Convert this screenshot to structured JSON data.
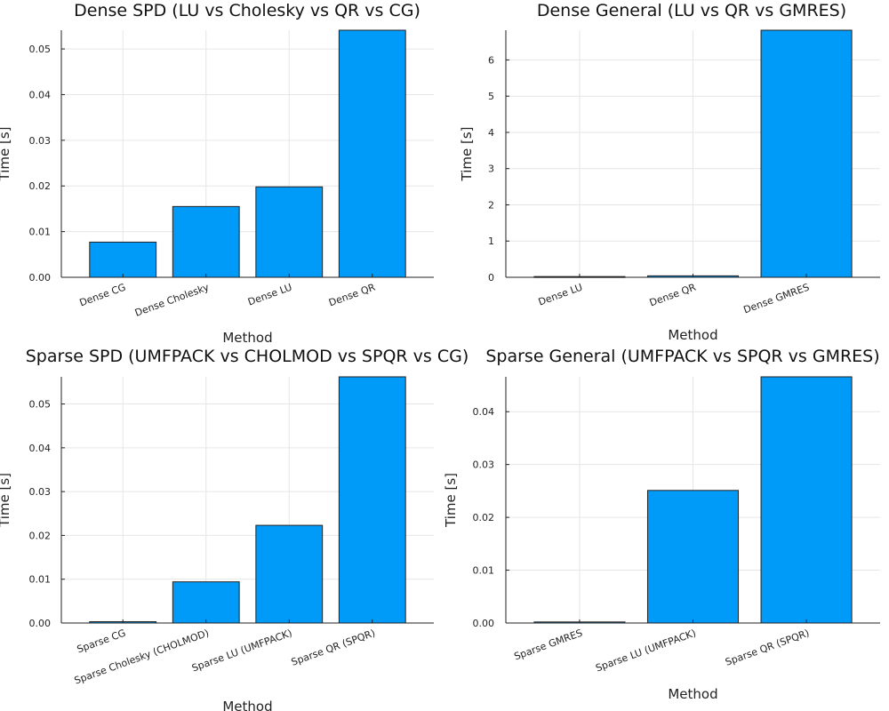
{
  "colors": {
    "bar": "#009AF9",
    "axis": "#222222",
    "grid": "#E6E6E6"
  },
  "chart_data": [
    {
      "type": "bar",
      "title": "Dense SPD (LU vs Cholesky vs QR vs CG)",
      "xlabel": "Method",
      "ylabel": "Time [s]",
      "categories": [
        "Dense CG",
        "Dense Cholesky",
        "Dense LU",
        "Dense QR"
      ],
      "values": [
        0.0077,
        0.0155,
        0.0198,
        0.0541
      ],
      "ylim": [
        0,
        0.0541
      ],
      "yticks": [
        0,
        0.01,
        0.02,
        0.03,
        0.04,
        0.05
      ],
      "ytick_labels": [
        "0.00",
        "0.01",
        "0.02",
        "0.03",
        "0.04",
        "0.05"
      ],
      "grid": true,
      "legend": false
    },
    {
      "type": "bar",
      "title": "Dense General (LU vs QR vs GMRES)",
      "xlabel": "Method",
      "ylabel": "Time [s]",
      "categories": [
        "Dense LU",
        "Dense QR",
        "Dense GMRES"
      ],
      "values": [
        0.02,
        0.04,
        6.82
      ],
      "ylim": [
        0,
        6.82
      ],
      "yticks": [
        0,
        1,
        2,
        3,
        4,
        5,
        6
      ],
      "ytick_labels": [
        "0",
        "1",
        "2",
        "3",
        "4",
        "5",
        "6"
      ],
      "grid": true,
      "legend": false
    },
    {
      "type": "bar",
      "title": "Sparse SPD (UMFPACK vs CHOLMOD vs SPQR vs CG)",
      "xlabel": "Method",
      "ylabel": "Time [s]",
      "categories": [
        "Sparse CG",
        "Sparse Cholesky (CHOLMOD)",
        "Sparse LU (UMFPACK)",
        "Sparse QR (SPQR)"
      ],
      "values": [
        0.0003,
        0.0094,
        0.0223,
        0.0562
      ],
      "ylim": [
        0,
        0.0562
      ],
      "yticks": [
        0,
        0.01,
        0.02,
        0.03,
        0.04,
        0.05
      ],
      "ytick_labels": [
        "0.00",
        "0.01",
        "0.02",
        "0.03",
        "0.04",
        "0.05"
      ],
      "grid": true,
      "legend": false
    },
    {
      "type": "bar",
      "title": "Sparse General (UMFPACK vs SPQR vs GMRES)",
      "xlabel": "Method",
      "ylabel": "Time [s]",
      "categories": [
        "Sparse GMRES",
        "Sparse LU (UMFPACK)",
        "Sparse QR (SPQR)"
      ],
      "values": [
        0.0002,
        0.0251,
        0.0466
      ],
      "ylim": [
        0,
        0.0466
      ],
      "yticks": [
        0,
        0.01,
        0.02,
        0.03,
        0.04
      ],
      "ytick_labels": [
        "0.00",
        "0.01",
        "0.02",
        "0.03",
        "0.04"
      ],
      "grid": true,
      "legend": false
    }
  ]
}
